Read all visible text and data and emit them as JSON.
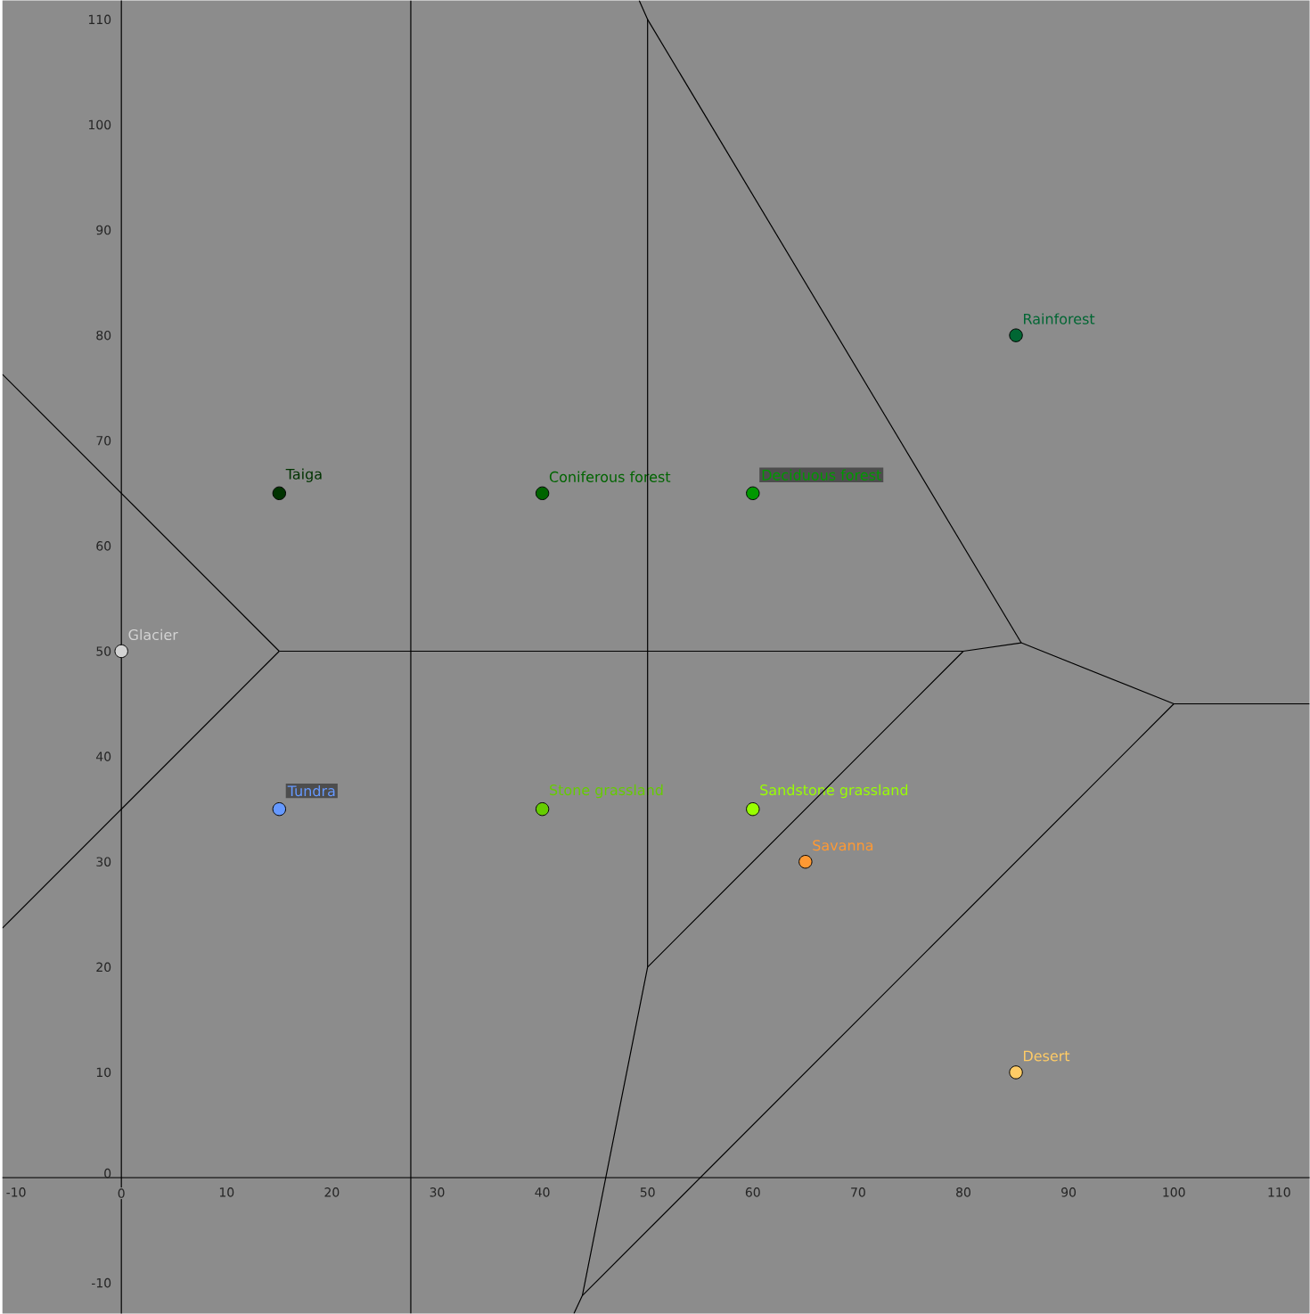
{
  "chart_data": {
    "type": "scatter",
    "line_style": "solid",
    "xlim": [
      -11.3,
      112.9
    ],
    "ylim": [
      -12.9,
      111.8
    ],
    "xticks": [
      -10,
      0,
      10,
      20,
      30,
      40,
      50,
      60,
      70,
      80,
      90,
      100,
      110
    ],
    "yticks": [
      -10,
      0,
      10,
      20,
      30,
      40,
      50,
      60,
      70,
      80,
      90,
      100,
      110
    ],
    "series": [
      {
        "name": "Glacier",
        "color": "#d3d3d3",
        "marker": "circle",
        "x": [
          0
        ],
        "values": [
          50
        ]
      },
      {
        "name": "Taiga",
        "color": "#003300",
        "marker": "circle",
        "x": [
          15
        ],
        "values": [
          65
        ]
      },
      {
        "name": "Coniferous forest",
        "color": "#006400",
        "marker": "circle",
        "x": [
          40
        ],
        "values": [
          65
        ]
      },
      {
        "name": "Deciduous forest",
        "color": "#009900",
        "marker": "circle",
        "x": [
          60
        ],
        "values": [
          65
        ]
      },
      {
        "name": "Rainforest",
        "color": "#006633",
        "marker": "circle",
        "x": [
          85
        ],
        "values": [
          80
        ]
      },
      {
        "name": "Tundra",
        "color": "#6699ff",
        "marker": "circle",
        "x": [
          15
        ],
        "values": [
          35
        ]
      },
      {
        "name": "Stone grassland",
        "color": "#66cc00",
        "marker": "circle",
        "x": [
          40
        ],
        "values": [
          35
        ]
      },
      {
        "name": "Sandstone grassland",
        "color": "#99ff00",
        "marker": "circle",
        "x": [
          60
        ],
        "values": [
          35
        ]
      },
      {
        "name": "Savanna",
        "color": "#ff9933",
        "marker": "circle",
        "x": [
          65
        ],
        "values": [
          30
        ]
      },
      {
        "name": "Desert",
        "color": "#ffcc66",
        "marker": "circle",
        "x": [
          85
        ],
        "values": [
          10
        ]
      },
      {
        "type": "line",
        "color": "#000000",
        "marker": "none",
        "x": [
          27.5,
          27.5
        ],
        "values": [
          -12.9,
          111.8
        ]
      },
      {
        "type": "line",
        "color": "#000000",
        "marker": "none",
        "x": [
          -11.3,
          15
        ],
        "values": [
          76.3,
          50
        ]
      },
      {
        "type": "line",
        "color": "#000000",
        "marker": "none",
        "x": [
          15,
          -11.3
        ],
        "values": [
          50,
          23.7
        ]
      },
      {
        "type": "line",
        "color": "#000000",
        "marker": "none",
        "x": [
          15,
          80,
          85.5,
          100,
          112.9
        ],
        "values": [
          50,
          50,
          50.8,
          45,
          45
        ]
      },
      {
        "type": "line",
        "color": "#000000",
        "marker": "none",
        "x": [
          80,
          50,
          43.8,
          43.0
        ],
        "values": [
          50,
          20,
          -11.2,
          -12.9
        ]
      },
      {
        "type": "line",
        "color": "#000000",
        "marker": "none",
        "x": [
          49.2,
          50,
          50
        ],
        "values": [
          111.8,
          110,
          20
        ]
      },
      {
        "type": "line",
        "color": "#000000",
        "marker": "none",
        "x": [
          50,
          85.5
        ],
        "values": [
          110,
          50.8
        ]
      },
      {
        "type": "line",
        "color": "#000000",
        "marker": "none",
        "x": [
          43.8,
          100
        ],
        "values": [
          -11.2,
          45
        ]
      }
    ]
  }
}
